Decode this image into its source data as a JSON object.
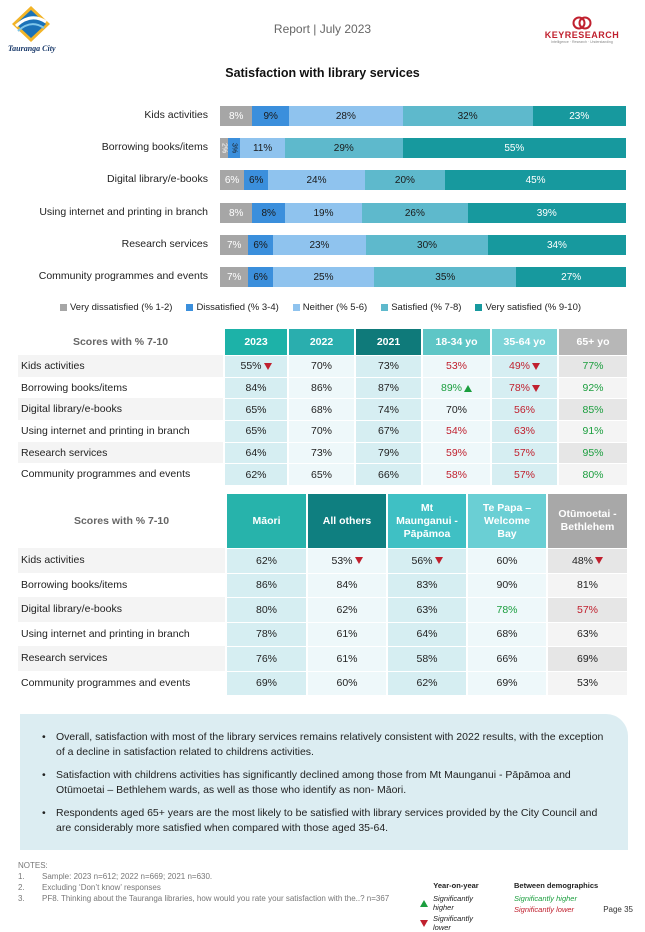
{
  "header": {
    "title": "Report | July 2023",
    "left_logo_text": "Tauranga City",
    "right_logo_text": "KEYRESEARCH",
    "right_logo_tag": "Intelligence · Research · Understanding"
  },
  "section_title": "Satisfaction with library services",
  "chart_data": {
    "type": "bar",
    "orientation": "horizontal-stacked-100",
    "categories": [
      "Kids activities",
      "Borrowing books/items",
      "Digital library/e-books",
      "Using internet and printing in branch",
      "Research services",
      "Community programmes and events"
    ],
    "series": [
      {
        "name": "Very dissatisfied (% 1-2)",
        "color": "#a6a6a6",
        "values": [
          8,
          2,
          6,
          8,
          7,
          7
        ],
        "labels": [
          "8%",
          "2%",
          "6%",
          "8%",
          "7%",
          "7%"
        ]
      },
      {
        "name": "Dissatisfied (% 3-4)",
        "color": "#3b8fdc",
        "values": [
          9,
          3,
          6,
          8,
          6,
          6
        ],
        "labels": [
          "9%",
          "3%",
          "6%",
          "8%",
          "6%",
          "6%"
        ]
      },
      {
        "name": "Neither (% 5-6)",
        "color": "#8fc3ee",
        "values": [
          28,
          11,
          24,
          19,
          23,
          25
        ],
        "labels": [
          "28%",
          "11%",
          "24%",
          "19%",
          "23%",
          "25%"
        ]
      },
      {
        "name": "Satisfied (% 7-8)",
        "color": "#5eb9cc",
        "values": [
          32,
          29,
          20,
          26,
          30,
          35
        ],
        "labels": [
          "32%",
          "29%",
          "20%",
          "26%",
          "30%",
          "35%"
        ]
      },
      {
        "name": "Very satisfied (% 9-10)",
        "color": "#17999e",
        "values": [
          23,
          55,
          45,
          39,
          34,
          27
        ],
        "labels": [
          "23%",
          "55%",
          "45%",
          "39%",
          "34%",
          "27%"
        ]
      }
    ],
    "legend_position": "bottom"
  },
  "table1": {
    "title": "Scores with % 7-10",
    "columns": [
      "2023",
      "2022",
      "2021",
      "18-34 yo",
      "35-64 yo",
      "65+ yo"
    ],
    "rows": [
      {
        "label": "Kids activities",
        "cells": [
          {
            "v": "55%",
            "mark": "down"
          },
          {
            "v": "70%"
          },
          {
            "v": "73%"
          },
          {
            "v": "53%",
            "color": "red"
          },
          {
            "v": "49%",
            "color": "red",
            "mark": "down"
          },
          {
            "v": "77%",
            "color": "green"
          }
        ]
      },
      {
        "label": "Borrowing books/items",
        "cells": [
          {
            "v": "84%"
          },
          {
            "v": "86%"
          },
          {
            "v": "87%"
          },
          {
            "v": "89%",
            "color": "green",
            "mark": "up"
          },
          {
            "v": "78%",
            "color": "red",
            "mark": "down"
          },
          {
            "v": "92%",
            "color": "green"
          }
        ]
      },
      {
        "label": "Digital library/e-books",
        "cells": [
          {
            "v": "65%"
          },
          {
            "v": "68%"
          },
          {
            "v": "74%"
          },
          {
            "v": "70%"
          },
          {
            "v": "56%",
            "color": "red"
          },
          {
            "v": "85%",
            "color": "green"
          }
        ]
      },
      {
        "label": "Using internet and printing in branch",
        "cells": [
          {
            "v": "65%"
          },
          {
            "v": "70%"
          },
          {
            "v": "67%"
          },
          {
            "v": "54%",
            "color": "red"
          },
          {
            "v": "63%",
            "color": "red"
          },
          {
            "v": "91%",
            "color": "green"
          }
        ]
      },
      {
        "label": "Research services",
        "cells": [
          {
            "v": "64%"
          },
          {
            "v": "73%"
          },
          {
            "v": "79%"
          },
          {
            "v": "59%",
            "color": "red"
          },
          {
            "v": "57%",
            "color": "red"
          },
          {
            "v": "95%",
            "color": "green"
          }
        ]
      },
      {
        "label": "Community programmes and events",
        "cells": [
          {
            "v": "62%"
          },
          {
            "v": "65%"
          },
          {
            "v": "66%"
          },
          {
            "v": "58%",
            "color": "red"
          },
          {
            "v": "57%",
            "color": "red"
          },
          {
            "v": "80%",
            "color": "green"
          }
        ]
      }
    ]
  },
  "table2": {
    "title": "Scores with % 7-10",
    "columns": [
      "Māori",
      "All others",
      "Mt Maunganui - Pāpāmoa",
      "Te Papa – Welcome Bay",
      "Otūmoetai - Bethlehem"
    ],
    "rows": [
      {
        "label": "Kids activities",
        "cells": [
          {
            "v": "62%"
          },
          {
            "v": "53%",
            "mark": "down"
          },
          {
            "v": "56%",
            "mark": "down"
          },
          {
            "v": "60%"
          },
          {
            "v": "48%",
            "mark": "down"
          }
        ]
      },
      {
        "label": "Borrowing books/items",
        "cells": [
          {
            "v": "86%"
          },
          {
            "v": "84%"
          },
          {
            "v": "83%"
          },
          {
            "v": "90%"
          },
          {
            "v": "81%"
          }
        ]
      },
      {
        "label": "Digital library/e-books",
        "cells": [
          {
            "v": "80%"
          },
          {
            "v": "62%"
          },
          {
            "v": "63%"
          },
          {
            "v": "78%",
            "color": "green"
          },
          {
            "v": "57%",
            "color": "red"
          }
        ]
      },
      {
        "label": "Using internet and printing in branch",
        "cells": [
          {
            "v": "78%"
          },
          {
            "v": "61%"
          },
          {
            "v": "64%"
          },
          {
            "v": "68%"
          },
          {
            "v": "63%"
          }
        ]
      },
      {
        "label": "Research services",
        "cells": [
          {
            "v": "76%"
          },
          {
            "v": "61%"
          },
          {
            "v": "58%"
          },
          {
            "v": "66%"
          },
          {
            "v": "69%"
          }
        ]
      },
      {
        "label": "Community programmes and events",
        "cells": [
          {
            "v": "69%"
          },
          {
            "v": "60%"
          },
          {
            "v": "62%"
          },
          {
            "v": "69%"
          },
          {
            "v": "53%"
          }
        ]
      }
    ]
  },
  "summary": [
    "Overall, satisfaction with most of the library services remains relatively consistent with 2022 results, with the exception of a decline in satisfaction related to childrens activities.",
    "Satisfaction with childrens activities has significantly declined among those from Mt Maunganui - Pāpāmoa and Otūmoetai – Bethlehem wards, as well as those who identify as non- Māori.",
    "Respondents aged 65+ years are the most likely to be satisfied with library services provided by the City Council and are considerably more satisfied when compared with those aged 35-64."
  ],
  "notes": {
    "title": "NOTES:",
    "items": [
      {
        "num": "1.",
        "text": "Sample: 2023 n=612; 2022 n=669; 2021 n=630."
      },
      {
        "num": "2.",
        "text": "Excluding ‘Don’t know’ responses"
      },
      {
        "num": "3.",
        "text": "PF8. Thinking about the Tauranga libraries, how would you rate your satisfaction with the..? n=367"
      }
    ]
  },
  "key": {
    "year_head": "Year-on-year",
    "demo_head": "Between demographics",
    "higher": "Significantly higher",
    "lower": "Significantly lower",
    "higher_color": "#1b9e3e",
    "lower_color": "#c0202e"
  },
  "page_number": "Page 35"
}
